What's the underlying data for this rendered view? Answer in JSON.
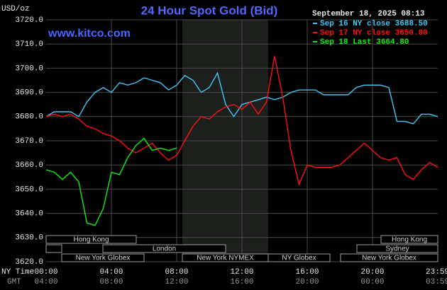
{
  "chart_data": {
    "type": "line",
    "title": "24 Hour Spot Gold (Bid)",
    "subtitle": "www.kitco.com",
    "y_label": "USD/oz",
    "timestamp": "September 18, 2025 08:13",
    "x_row_labels": [
      "NY Time",
      "GMT"
    ],
    "x": [
      0,
      0.5,
      1,
      1.5,
      2,
      2.5,
      3,
      3.5,
      4,
      4.5,
      5,
      5.5,
      6,
      6.5,
      7,
      7.5,
      8,
      8.5,
      9,
      9.5,
      10,
      10.5,
      11,
      11.5,
      12,
      12.5,
      13,
      13.5,
      14,
      14.5,
      15,
      15.5,
      16,
      16.5,
      17,
      17.5,
      18,
      18.5,
      19,
      19.5,
      20,
      20.5,
      21,
      21.5,
      22,
      22.5,
      23,
      23.5,
      24
    ],
    "series": [
      {
        "name": "Sep 16 NY close 3688.50",
        "color": "#40c8f8",
        "values": [
          3680,
          3682,
          3682,
          3682,
          3680,
          3686,
          3690,
          3692,
          3690,
          3694,
          3693,
          3694,
          3696,
          3695,
          3694,
          3691,
          3693,
          3697,
          3695,
          3690,
          3692,
          3698,
          3685,
          3680,
          3685,
          3686,
          3687,
          3688,
          3687,
          3688,
          3690,
          3691,
          3691,
          3691,
          3689,
          3689,
          3689,
          3689,
          3692,
          3693,
          3693,
          3693,
          3692,
          3678,
          3678,
          3677,
          3681,
          3681,
          3680
        ]
      },
      {
        "name": "Sep 17 NY close 3650.80",
        "color": "#ff1010",
        "values": [
          3680,
          3681,
          3680,
          3681,
          3679,
          3676,
          3675,
          3673,
          3672,
          3670,
          3667,
          3665,
          3667,
          3669,
          3665,
          3662,
          3664,
          3670,
          3676,
          3680,
          3679,
          3682,
          3684,
          3685,
          3683,
          3686,
          3681,
          3686,
          3705,
          3688,
          3666,
          3652,
          3660,
          3659,
          3659,
          3659,
          3660,
          3663,
          3666,
          3669,
          3666,
          3663,
          3662,
          3663,
          3656,
          3654,
          3658,
          3661,
          3659
        ]
      },
      {
        "name": "Sep 18 Last 3664.80",
        "color": "#10f010",
        "values": [
          3658,
          3657,
          3654,
          3657,
          3653,
          3636,
          3635,
          3642,
          3657,
          3656,
          3663,
          3668,
          3671,
          3666,
          3667,
          3666,
          3667,
          null,
          null,
          null,
          null,
          null,
          null,
          null,
          null,
          null,
          null,
          null,
          null,
          null,
          null,
          null,
          null,
          null,
          null,
          null,
          null,
          null,
          null,
          null,
          null,
          null,
          null,
          null,
          null,
          null,
          null,
          null,
          null
        ]
      }
    ],
    "xlim": [
      0,
      24
    ],
    "xticks": [
      {
        "value": 0,
        "label": "00:00"
      },
      {
        "value": 4,
        "label": "04:00"
      },
      {
        "value": 8,
        "label": "08:00"
      },
      {
        "value": 12,
        "label": "12:00"
      },
      {
        "value": 16,
        "label": "16:00"
      },
      {
        "value": 20,
        "label": "20:00"
      },
      {
        "value": 23.98,
        "label": "23:59"
      }
    ],
    "gmt_ticks": [
      {
        "value": 0,
        "label": "04:00"
      },
      {
        "value": 4,
        "label": "08:00"
      },
      {
        "value": 8,
        "label": "12:00"
      },
      {
        "value": 12,
        "label": "16:00"
      },
      {
        "value": 16,
        "label": "20:00"
      },
      {
        "value": 20,
        "label": "00:00"
      },
      {
        "value": 23.98,
        "label": "03:59"
      }
    ],
    "ylim": [
      3620,
      3720
    ],
    "yticks": [
      {
        "value": 3620,
        "label": "3620.0"
      },
      {
        "value": 3630,
        "label": "3630.0"
      },
      {
        "value": 3640,
        "label": "3640.0"
      },
      {
        "value": 3650,
        "label": "3650.0"
      },
      {
        "value": 3660,
        "label": "3660.0"
      },
      {
        "value": 3670,
        "label": "3670.0"
      },
      {
        "value": 3680,
        "label": "3680.0"
      },
      {
        "value": 3690,
        "label": "3690.0"
      },
      {
        "value": 3700,
        "label": "3700.0"
      },
      {
        "value": 3710,
        "label": "3710.0"
      },
      {
        "value": 3720,
        "label": "3720.0"
      }
    ],
    "grid": true,
    "sessions": [
      "Hong Kong",
      "London",
      "New York Globex",
      "New York NYMEX",
      "NY Globex",
      "Hong Kong",
      "Sydney",
      "New York Globex"
    ]
  }
}
